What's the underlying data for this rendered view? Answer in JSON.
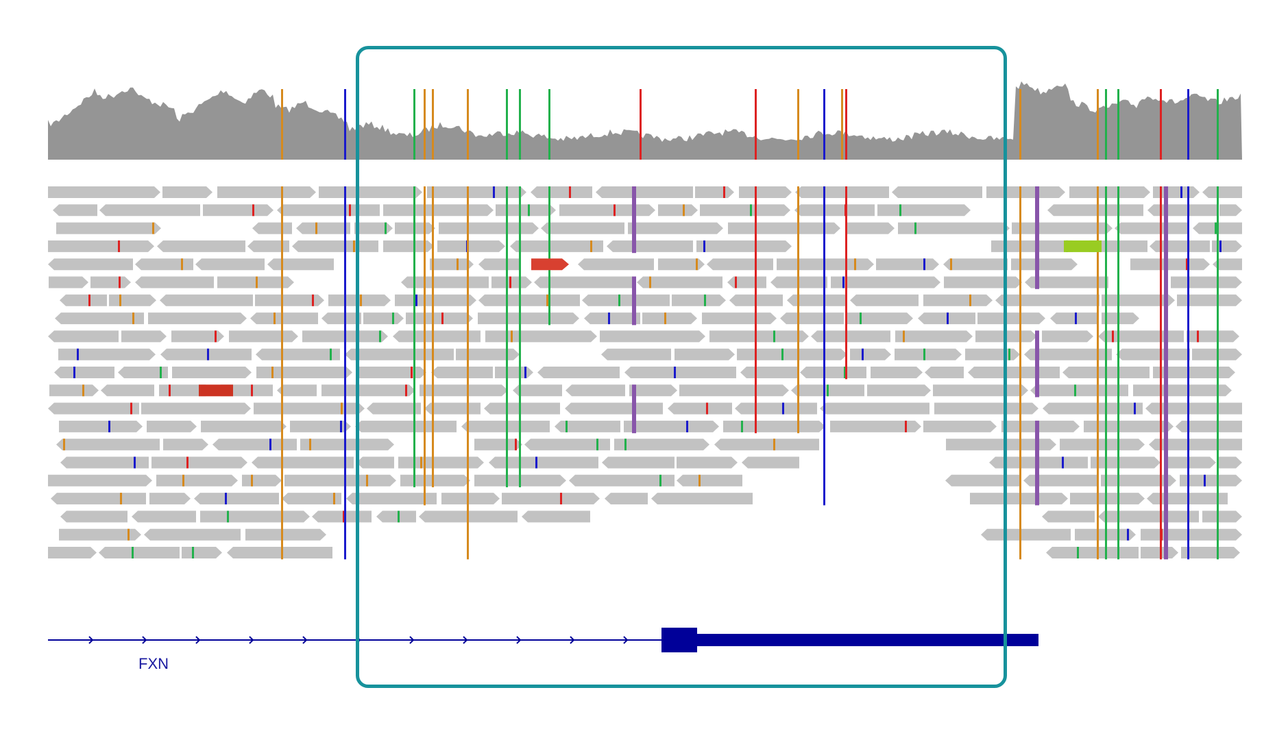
{
  "colors": {
    "coverage": "#959595",
    "read": "#c2c2c2",
    "gene": "#000099",
    "highlight": "#17929c",
    "mismatch_A": "#22b14c",
    "mismatch_C": "#1a1acc",
    "mismatch_G": "#d68a1e",
    "mismatch_T": "#dd2222",
    "insertion": "#8855aa"
  },
  "gene": {
    "name": "FXN",
    "strand": "+"
  },
  "tracks": [
    "coverage",
    "alignments",
    "genes"
  ]
}
